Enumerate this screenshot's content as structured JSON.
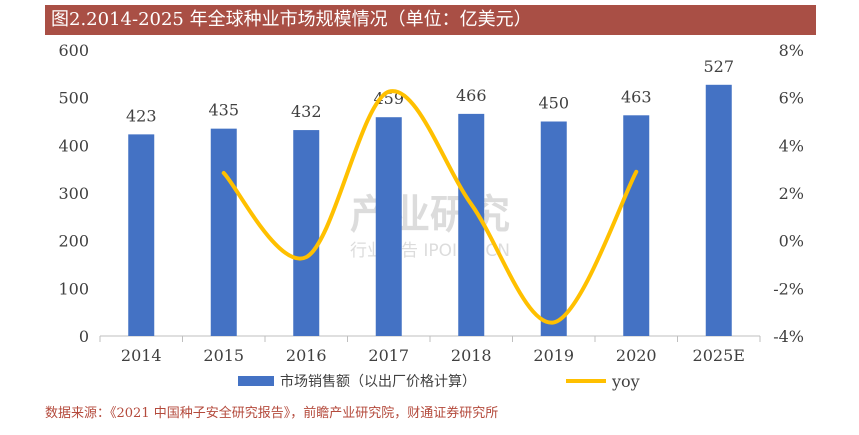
{
  "title": "图2.2014-2025 年全球种业市场规模情况（单位：亿美元）",
  "source": "数据来源：《2021 中国种子安全研究报告》，前瞻产业研究院，财通证券研究所",
  "watermark": {
    "main": "产业研究",
    "sub": "行业报告 IPOIPO.CN"
  },
  "colors": {
    "banner": "#a94f45",
    "bar": "#4472c4",
    "line": "#ffc000",
    "source_text": "#b44a3c"
  },
  "chart_data": {
    "type": "bar",
    "categories": [
      "2014",
      "2015",
      "2016",
      "2017",
      "2018",
      "2019",
      "2020",
      "2025E"
    ],
    "series": [
      {
        "name": "市场销售额（以出厂价格计算）",
        "type": "bar",
        "axis": "left",
        "values": [
          423,
          435,
          432,
          459,
          466,
          450,
          463,
          527
        ],
        "labels": [
          "423",
          "435",
          "432",
          "459",
          "466",
          "450",
          "463",
          "527"
        ]
      },
      {
        "name": "yoy",
        "type": "line",
        "axis": "right",
        "values": [
          null,
          2.84,
          -0.69,
          6.25,
          1.53,
          -3.43,
          2.89,
          null
        ]
      }
    ],
    "y_left": {
      "min": 0,
      "max": 600,
      "ticks": [
        0,
        100,
        200,
        300,
        400,
        500,
        600
      ],
      "tick_labels": [
        "0",
        "100",
        "200",
        "300",
        "400",
        "500",
        "600"
      ]
    },
    "y_right": {
      "min": -4,
      "max": 8,
      "ticks": [
        -4,
        -2,
        0,
        2,
        4,
        6,
        8
      ],
      "tick_labels": [
        "-4%",
        "-2%",
        "0%",
        "2%",
        "4%",
        "6%",
        "8%"
      ]
    },
    "legend_position": "bottom",
    "grid": false
  }
}
